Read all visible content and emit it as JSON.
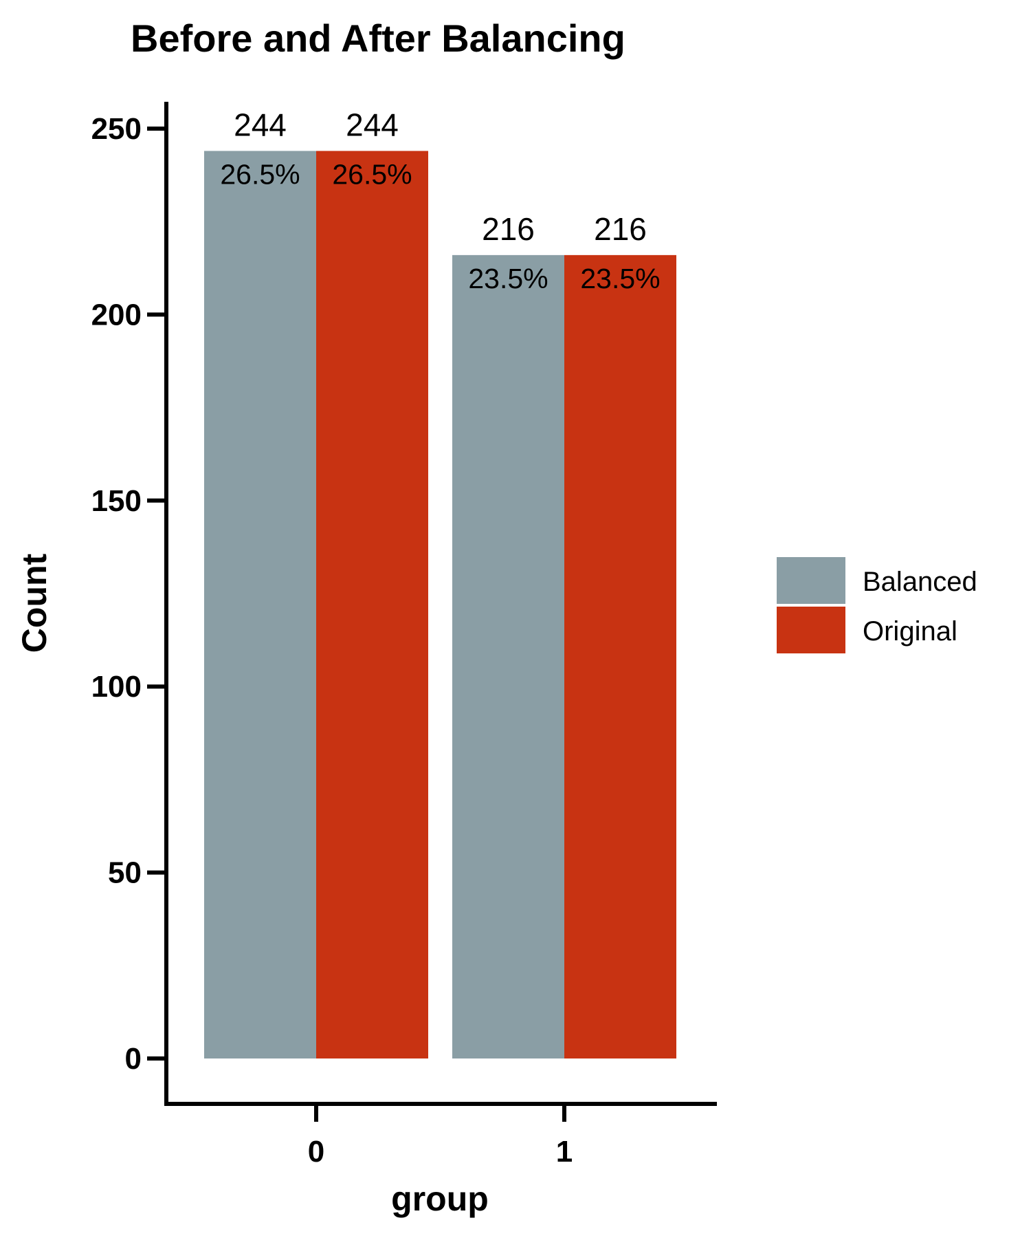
{
  "chart_data": {
    "type": "bar",
    "title": "Before and After Balancing",
    "xlabel": "group",
    "ylabel": "Count",
    "categories": [
      "0",
      "1"
    ],
    "series": [
      {
        "name": "Balanced",
        "color": "#8a9ea5",
        "values": [
          244,
          216
        ],
        "percent_labels": [
          "26.5%",
          "23.5%"
        ]
      },
      {
        "name": "Original",
        "color": "#c83312",
        "values": [
          244,
          216
        ],
        "percent_labels": [
          "26.5%",
          "23.5%"
        ]
      }
    ],
    "y_ticks": [
      0,
      50,
      100,
      150,
      200,
      250
    ],
    "ylim": [
      0,
      250
    ],
    "grid": false,
    "legend_position": "right"
  }
}
